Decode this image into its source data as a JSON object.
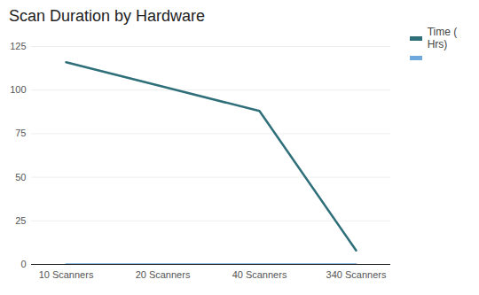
{
  "chart_data": {
    "type": "line",
    "title": "Scan Duration by Hardware",
    "categories": [
      "10 Scanners",
      "20 Scanners",
      "40 Scanners",
      "340 Scanners"
    ],
    "series": [
      {
        "name": "Time ( Hrs)",
        "color": "#2f6f79",
        "values": [
          116,
          102,
          88,
          8
        ]
      },
      {
        "name": null,
        "color": "#6fa8dc",
        "values": [
          0,
          0,
          0,
          0
        ]
      }
    ],
    "ylim": [
      0,
      125
    ],
    "yticks": [
      0,
      25,
      50,
      75,
      100,
      125
    ],
    "grid": true,
    "legend": "right"
  }
}
